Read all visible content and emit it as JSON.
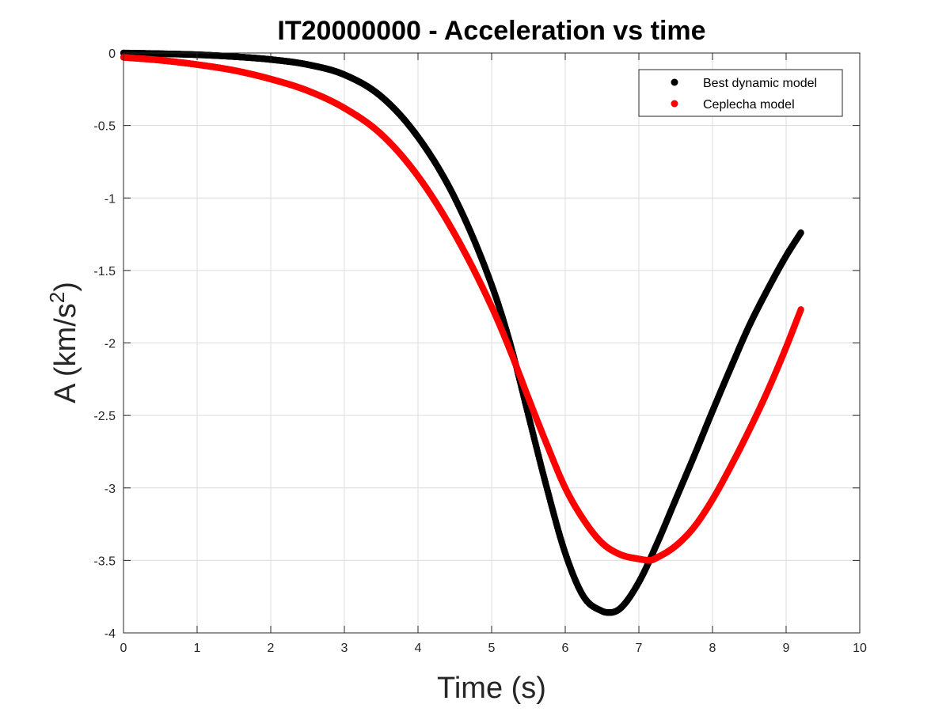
{
  "chart_data": {
    "type": "scatter",
    "title": "IT20000000 - Acceleration vs time",
    "xlabel": "Time (s)",
    "ylabel": "A (km/s",
    "ylabel_superscript": "2",
    "ylabel_close": ")",
    "xlim": [
      0,
      10
    ],
    "ylim": [
      -4,
      0
    ],
    "xticks": [
      0,
      1,
      2,
      3,
      4,
      5,
      6,
      7,
      8,
      9,
      10
    ],
    "yticks": [
      0,
      -0.5,
      -1,
      -1.5,
      -2,
      -2.5,
      -3,
      -3.5,
      -4
    ],
    "xtick_labels": [
      "0",
      "1",
      "2",
      "3",
      "4",
      "5",
      "6",
      "7",
      "8",
      "9",
      "10"
    ],
    "ytick_labels": [
      "0",
      "-0.5",
      "-1",
      "-1.5",
      "-2",
      "-2.5",
      "-3",
      "-3.5",
      "-4"
    ],
    "grid": true,
    "legend_position": "top-right",
    "series": [
      {
        "name": "Best dynamic model",
        "color": "#000000",
        "x": [
          0,
          0.5,
          1,
          1.5,
          2,
          2.5,
          3,
          3.5,
          4,
          4.5,
          5,
          5.25,
          5.5,
          5.75,
          6,
          6.25,
          6.5,
          6.6,
          6.75,
          7,
          7.25,
          7.5,
          7.75,
          8,
          8.25,
          8.5,
          8.75,
          9,
          9.2
        ],
        "y": [
          0,
          -0.005,
          -0.012,
          -0.025,
          -0.045,
          -0.08,
          -0.15,
          -0.3,
          -0.58,
          -1.0,
          -1.6,
          -2.0,
          -2.5,
          -3.0,
          -3.45,
          -3.75,
          -3.85,
          -3.86,
          -3.83,
          -3.65,
          -3.38,
          -3.08,
          -2.78,
          -2.47,
          -2.17,
          -1.88,
          -1.63,
          -1.4,
          -1.24
        ]
      },
      {
        "name": "Ceplecha model",
        "color": "#ff0000",
        "x": [
          0,
          0.5,
          1,
          1.5,
          2,
          2.5,
          3,
          3.5,
          4,
          4.5,
          5,
          5.25,
          5.5,
          5.75,
          6,
          6.25,
          6.5,
          6.75,
          7,
          7.15,
          7.25,
          7.5,
          7.75,
          8,
          8.25,
          8.5,
          8.75,
          9,
          9.2
        ],
        "y": [
          -0.03,
          -0.05,
          -0.08,
          -0.12,
          -0.18,
          -0.26,
          -0.38,
          -0.56,
          -0.85,
          -1.25,
          -1.75,
          -2.05,
          -2.38,
          -2.7,
          -3.0,
          -3.22,
          -3.38,
          -3.46,
          -3.49,
          -3.5,
          -3.48,
          -3.4,
          -3.27,
          -3.08,
          -2.85,
          -2.6,
          -2.33,
          -2.03,
          -1.77
        ]
      }
    ]
  }
}
